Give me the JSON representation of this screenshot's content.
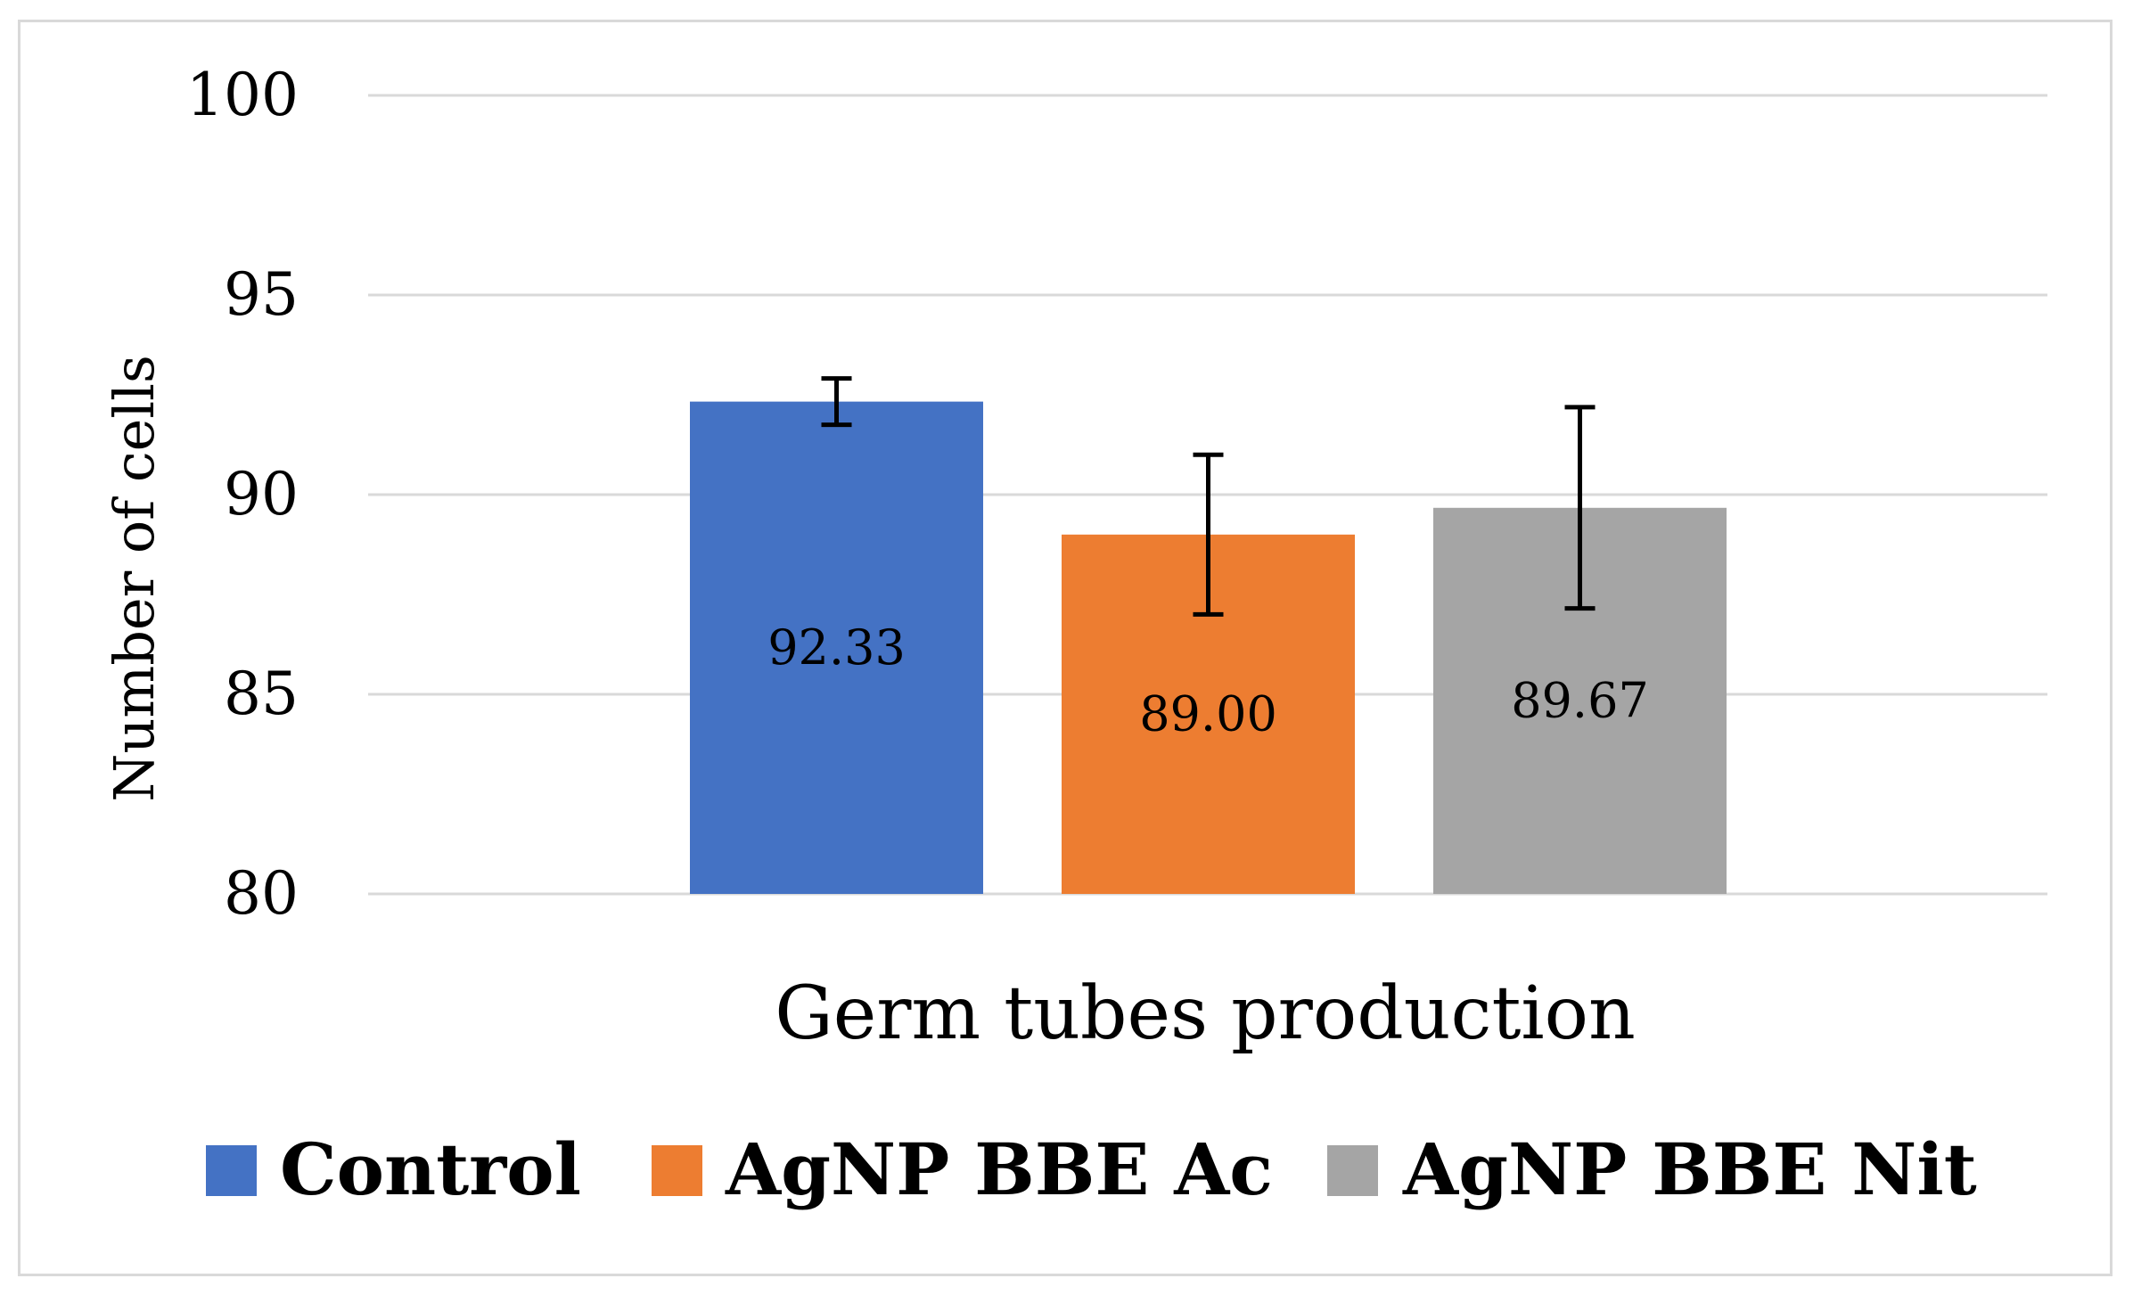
{
  "chart_data": {
    "type": "bar",
    "title": "",
    "xlabel": "Germ tubes production",
    "ylabel": "Number of cells",
    "ylim": [
      80,
      100
    ],
    "yticks": [
      80,
      85,
      90,
      95,
      100
    ],
    "grid": true,
    "legend_position": "bottom",
    "categories": [
      "Germ tubes production"
    ],
    "series": [
      {
        "name": "Control",
        "values": [
          92.33
        ],
        "error": [
          0.58
        ],
        "label": "92.33",
        "color": "#4472c4"
      },
      {
        "name": "AgNP BBE Ac",
        "values": [
          89.0
        ],
        "error": [
          2.0
        ],
        "label": "89.00",
        "color": "#ed7d31"
      },
      {
        "name": "AgNP BBE Nit",
        "values": [
          89.67
        ],
        "error": [
          2.52
        ],
        "label": "89.67",
        "color": "#a5a5a5"
      }
    ]
  }
}
